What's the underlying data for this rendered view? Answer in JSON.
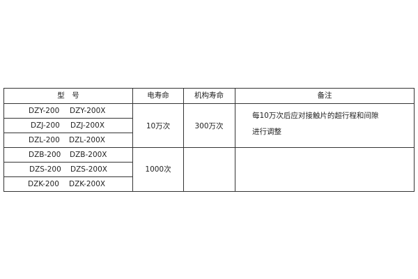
{
  "table": {
    "headers": [
      "型　号",
      "电寿命",
      "机构寿命",
      "备注"
    ],
    "rows": [
      {
        "model": "DZY-200",
        "model_x": "DZY-200X"
      },
      {
        "model": "DZJ-200",
        "model_x": "DZJ-200X"
      },
      {
        "model": "DZL-200",
        "model_x": "DZL-200X"
      },
      {
        "model": "DZB-200",
        "model_x": "DZB-200X"
      },
      {
        "model": "DZS-200",
        "model_x": "DZS-200X"
      },
      {
        "model": "DZK-200",
        "model_x": "DZK-200X"
      }
    ],
    "group1": {
      "electrical_life": "10万次",
      "mechanical_life": "300万次",
      "remark_line1": "每10万次后应对接触片的超行程和间隙",
      "remark_line2": "进行调整"
    },
    "group2": {
      "electrical_life": "1000次"
    }
  }
}
